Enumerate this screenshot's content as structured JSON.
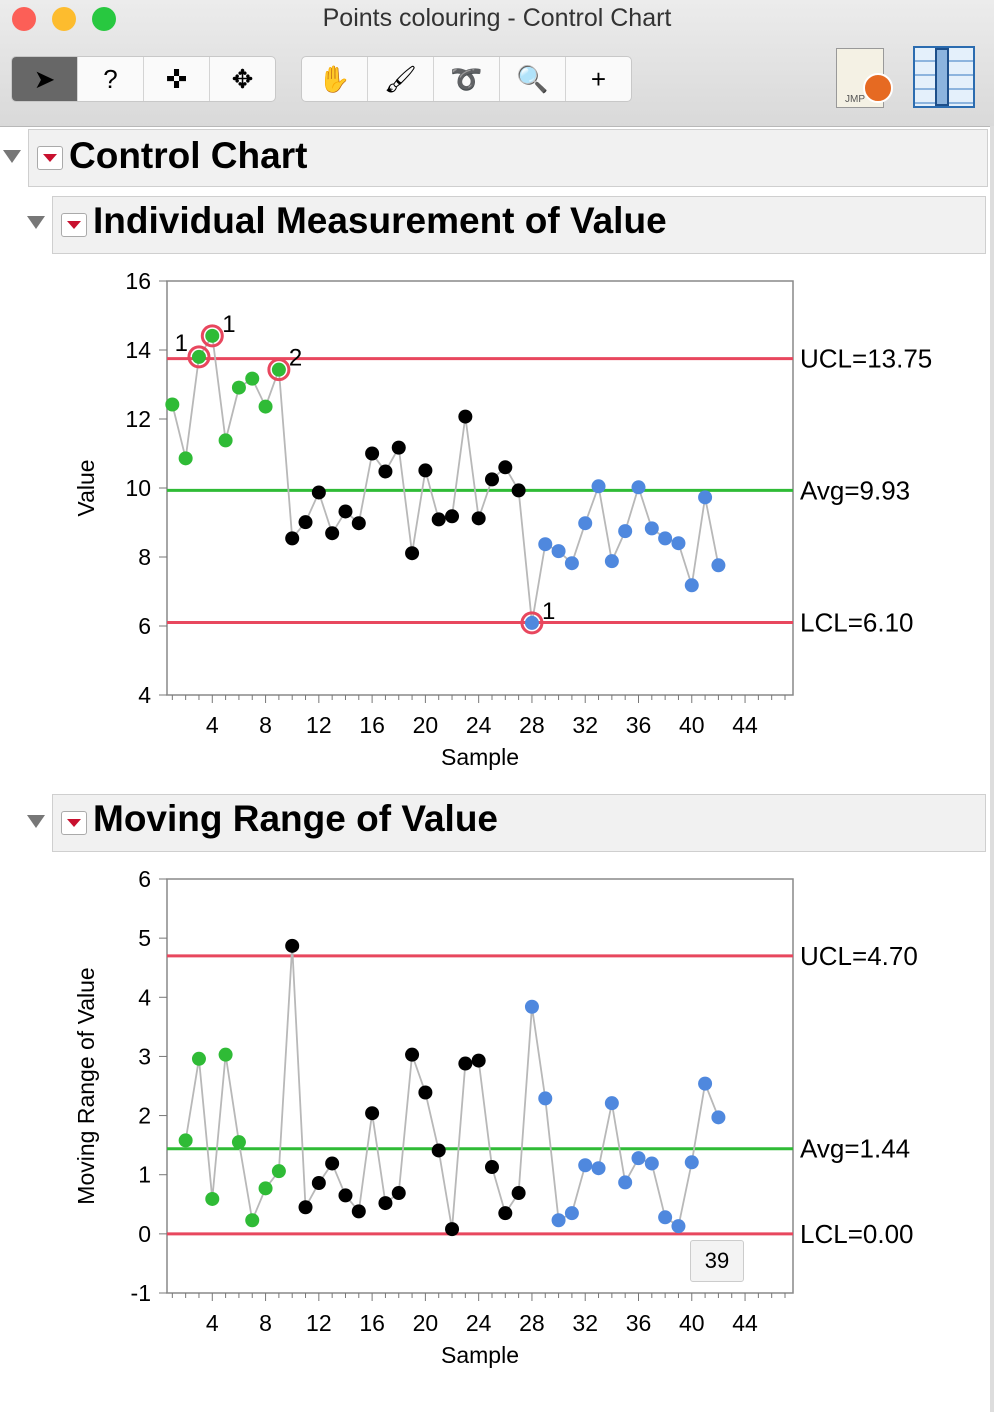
{
  "window": {
    "title": "Points colouring - Control Chart"
  },
  "toolbar": {
    "group1": [
      {
        "name": "arrow-tool",
        "glyph": "➤"
      },
      {
        "name": "help-tool",
        "glyph": "?"
      },
      {
        "name": "crosshair-tool",
        "glyph": "✜"
      },
      {
        "name": "move-tool",
        "glyph": "✥"
      }
    ],
    "group2": [
      {
        "name": "hand-tool",
        "glyph": "✋"
      },
      {
        "name": "brush-tool",
        "glyph": "🖌"
      },
      {
        "name": "lasso-tool",
        "glyph": "➰"
      },
      {
        "name": "magnifier-tool",
        "glyph": "🔍"
      },
      {
        "name": "annotate-xy-tool",
        "glyph": "+"
      }
    ],
    "jmp_label": "JMP"
  },
  "report": {
    "title": "Control Chart"
  },
  "colors": {
    "green": "#2fbb36",
    "black": "#000000",
    "blue": "#4f88de",
    "limit": "#e8475e",
    "center": "#2fbb36",
    "line": "#b8b8b8"
  },
  "tooltip": "39",
  "chart_data": [
    {
      "type": "line",
      "title": "Individual Measurement of Value",
      "xlabel": "Sample",
      "ylabel": "Value",
      "xlim": [
        0.6,
        47.6
      ],
      "ylim": [
        4,
        16
      ],
      "xticks": [
        4,
        8,
        12,
        16,
        20,
        24,
        28,
        32,
        36,
        40,
        44
      ],
      "yticks": [
        4,
        6,
        8,
        10,
        12,
        14,
        16
      ],
      "limits": {
        "ucl": 13.75,
        "avg": 9.93,
        "lcl": 6.1,
        "ucl_label": "UCL=13.75",
        "avg_label": "Avg=9.93",
        "lcl_label": "LCL=6.10"
      },
      "x": [
        1,
        2,
        3,
        4,
        5,
        6,
        7,
        8,
        9,
        10,
        11,
        12,
        13,
        14,
        15,
        16,
        17,
        18,
        19,
        20,
        21,
        22,
        23,
        24,
        25,
        26,
        27,
        28,
        29,
        30,
        31,
        32,
        33,
        34,
        35,
        36,
        37,
        38,
        39,
        40,
        41,
        42
      ],
      "values": [
        12.42,
        10.86,
        13.8,
        14.41,
        11.38,
        12.91,
        13.17,
        12.36,
        13.43,
        8.54,
        9.01,
        9.87,
        8.69,
        9.32,
        8.98,
        11.0,
        10.48,
        11.17,
        8.11,
        10.51,
        9.09,
        9.18,
        12.07,
        9.12,
        10.25,
        10.6,
        9.93,
        6.09,
        8.37,
        8.17,
        7.82,
        8.98,
        10.05,
        7.88,
        8.75,
        10.02,
        8.83,
        8.54,
        8.4,
        7.18,
        9.73,
        7.76
      ],
      "groups": [
        "green",
        "green",
        "green",
        "green",
        "green",
        "green",
        "green",
        "green",
        "green",
        "black",
        "black",
        "black",
        "black",
        "black",
        "black",
        "black",
        "black",
        "black",
        "black",
        "black",
        "black",
        "black",
        "black",
        "black",
        "black",
        "black",
        "black",
        "blue",
        "blue",
        "blue",
        "blue",
        "blue",
        "blue",
        "blue",
        "blue",
        "blue",
        "blue",
        "blue",
        "blue",
        "blue",
        "blue",
        "blue"
      ],
      "flags": [
        {
          "x": 3,
          "label": "1"
        },
        {
          "x": 4,
          "label": "1"
        },
        {
          "x": 9,
          "label": "2"
        },
        {
          "x": 28,
          "label": "1"
        }
      ]
    },
    {
      "type": "line",
      "title": "Moving Range of Value",
      "xlabel": "Sample",
      "ylabel": "Moving Range of Value",
      "xlim": [
        0.6,
        47.6
      ],
      "ylim": [
        -1,
        6
      ],
      "xticks": [
        4,
        8,
        12,
        16,
        20,
        24,
        28,
        32,
        36,
        40,
        44
      ],
      "yticks": [
        -1,
        0,
        1,
        2,
        3,
        4,
        5,
        6
      ],
      "limits": {
        "ucl": 4.7,
        "avg": 1.44,
        "lcl": 0,
        "ucl_label": "UCL=4.70",
        "avg_label": "Avg=1.44",
        "lcl_label": "LCL=0.00"
      },
      "x": [
        2,
        3,
        4,
        5,
        6,
        7,
        8,
        9,
        10,
        11,
        12,
        13,
        14,
        15,
        16,
        17,
        18,
        19,
        20,
        21,
        22,
        23,
        24,
        25,
        26,
        27,
        28,
        29,
        30,
        31,
        32,
        33,
        34,
        35,
        36,
        37,
        38,
        39,
        40,
        41,
        42
      ],
      "values": [
        1.58,
        2.96,
        0.59,
        3.03,
        1.55,
        0.23,
        0.77,
        1.06,
        4.87,
        0.45,
        0.86,
        1.19,
        0.65,
        0.38,
        2.04,
        0.52,
        0.69,
        3.03,
        2.39,
        1.41,
        0.08,
        2.88,
        2.93,
        1.13,
        0.35,
        0.69,
        3.84,
        2.29,
        0.23,
        0.35,
        1.16,
        1.11,
        2.21,
        0.87,
        1.28,
        1.19,
        0.28,
        0.13,
        1.21,
        2.54,
        1.97
      ],
      "groups": [
        "green",
        "green",
        "green",
        "green",
        "green",
        "green",
        "green",
        "green",
        "black",
        "black",
        "black",
        "black",
        "black",
        "black",
        "black",
        "black",
        "black",
        "black",
        "black",
        "black",
        "black",
        "black",
        "black",
        "black",
        "black",
        "black",
        "blue",
        "blue",
        "blue",
        "blue",
        "blue",
        "blue",
        "blue",
        "blue",
        "blue",
        "blue",
        "blue",
        "blue",
        "blue",
        "blue",
        "blue"
      ],
      "flags": []
    }
  ]
}
